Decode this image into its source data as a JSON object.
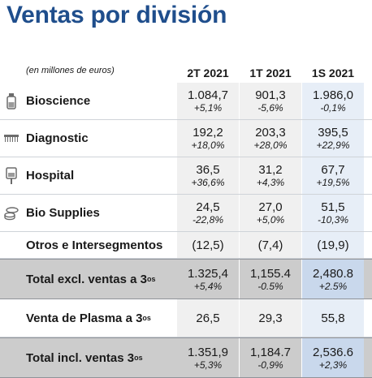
{
  "title": "Ventas por división",
  "units_note": "(en millones de euros)",
  "columns": [
    "2T 2021",
    "1T 2021",
    "1S 2021"
  ],
  "rows": [
    {
      "label": "Bioscience",
      "icon": "vial-icon",
      "values": [
        "1.084,7",
        "901,3",
        "1.986,0"
      ],
      "changes": [
        "+5,1%",
        "-5,6%",
        "-0,1%"
      ]
    },
    {
      "label": "Diagnostic",
      "icon": "barcode-icon",
      "values": [
        "192,2",
        "203,3",
        "395,5"
      ],
      "changes": [
        "+18,0%",
        "+28,0%",
        "+22,9%"
      ]
    },
    {
      "label": "Hospital",
      "icon": "iv-bag-icon",
      "values": [
        "36,5",
        "31,2",
        "67,7"
      ],
      "changes": [
        "+36,6%",
        "+4,3%",
        "+19,5%"
      ]
    },
    {
      "label": "Bio Supplies",
      "icon": "petri-dish-icon",
      "values": [
        "24,5",
        "27,0",
        "51,5"
      ],
      "changes": [
        "-22,8%",
        "+5,0%",
        "-10,3%"
      ]
    }
  ],
  "otros": {
    "label": "Otros e Intersegmentos",
    "values": [
      "(12,5)",
      "(7,4)",
      "(19,9)"
    ]
  },
  "total_excl": {
    "label": "Total excl. ventas a 3",
    "sup": "os",
    "values": [
      "1.325,4",
      "1,155.4",
      "2,480.8"
    ],
    "changes": [
      "+5,4%",
      "-0.5%",
      "+2.5%"
    ]
  },
  "plasma": {
    "label": "Venta de Plasma a 3",
    "sup": "os",
    "values": [
      "26,5",
      "29,3",
      "55,8"
    ]
  },
  "total_incl": {
    "label": "Total incl. ventas 3",
    "sup": "os",
    "values": [
      "1.351,9",
      "1,184.7",
      "2,536.6"
    ],
    "changes": [
      "+5,3%",
      "-0,9%",
      "+2,3%"
    ]
  }
}
